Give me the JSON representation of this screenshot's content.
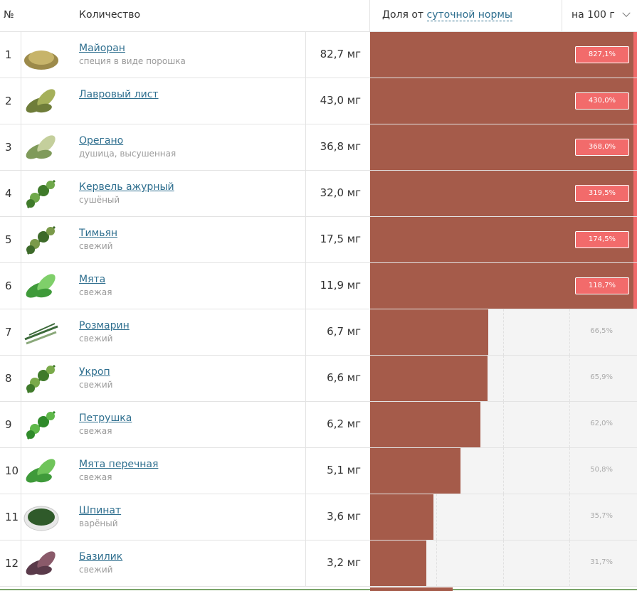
{
  "header": {
    "num_label": "№",
    "qty_label": "Количество",
    "share_prefix": "Доля от",
    "share_link": "суточной нормы",
    "per_label": "на 100 г"
  },
  "colors": {
    "bar": "#a55b4a",
    "badge": "#f26b6b",
    "link": "#2f6f8f"
  },
  "rows": [
    {
      "n": "1",
      "name": "Майоран",
      "sub": "специя в виде порошка",
      "amount": "82,7 мг",
      "pct_label": "827,1%",
      "pct": 827.1,
      "icon": "marjoram-icon"
    },
    {
      "n": "2",
      "name": "Лавровый лист",
      "sub": "",
      "amount": "43,0 мг",
      "pct_label": "430,0%",
      "pct": 430.0,
      "icon": "bay-leaf-icon"
    },
    {
      "n": "3",
      "name": "Орегано",
      "sub": "душица, высушенная",
      "amount": "36,8 мг",
      "pct_label": "368,0%",
      "pct": 368.0,
      "icon": "oregano-icon"
    },
    {
      "n": "4",
      "name": "Кервель ажурный",
      "sub": "сушёный",
      "amount": "32,0 мг",
      "pct_label": "319,5%",
      "pct": 319.5,
      "icon": "chervil-icon"
    },
    {
      "n": "5",
      "name": "Тимьян",
      "sub": "свежий",
      "amount": "17,5 мг",
      "pct_label": "174,5%",
      "pct": 174.5,
      "icon": "thyme-icon"
    },
    {
      "n": "6",
      "name": "Мята",
      "sub": "свежая",
      "amount": "11,9 мг",
      "pct_label": "118,7%",
      "pct": 118.7,
      "icon": "mint-icon"
    },
    {
      "n": "7",
      "name": "Розмарин",
      "sub": "свежий",
      "amount": "6,7 мг",
      "pct_label": "66,5%",
      "pct": 66.5,
      "icon": "rosemary-icon"
    },
    {
      "n": "8",
      "name": "Укроп",
      "sub": "свежий",
      "amount": "6,6 мг",
      "pct_label": "65,9%",
      "pct": 65.9,
      "icon": "dill-icon"
    },
    {
      "n": "9",
      "name": "Петрушка",
      "sub": "свежая",
      "amount": "6,2 мг",
      "pct_label": "62,0%",
      "pct": 62.0,
      "icon": "parsley-icon"
    },
    {
      "n": "10",
      "name": "Мята перечная",
      "sub": "свежая",
      "amount": "5,1 мг",
      "pct_label": "50,8%",
      "pct": 50.8,
      "icon": "peppermint-icon"
    },
    {
      "n": "11",
      "name": "Шпинат",
      "sub": "варёный",
      "amount": "3,6 мг",
      "pct_label": "35,7%",
      "pct": 35.7,
      "icon": "spinach-icon"
    },
    {
      "n": "12",
      "name": "Базилик",
      "sub": "свежий",
      "amount": "3,2 мг",
      "pct_label": "31,7%",
      "pct": 31.7,
      "icon": "basil-icon"
    }
  ]
}
